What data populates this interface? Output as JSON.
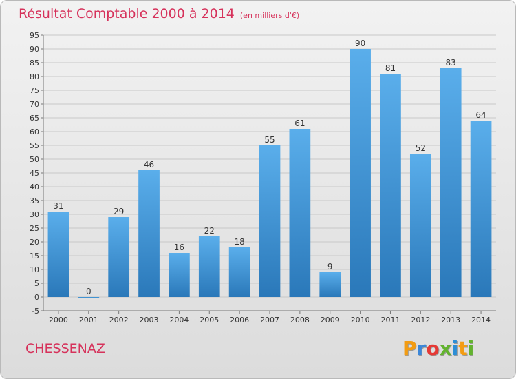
{
  "header": {
    "title": "Résultat Comptable 2000 à 2014",
    "subtitle": "(en milliers d'€)"
  },
  "footer": {
    "place": "CHESSENAZ",
    "logo_letters": [
      "P",
      "r",
      "o",
      "x",
      "i",
      "t",
      "i"
    ],
    "logo_colors": [
      "#f39c12",
      "#3b87d9",
      "#e53935",
      "#62b32e",
      "#2c8ed6",
      "#f39c12",
      "#62b32e"
    ]
  },
  "chart_data": {
    "type": "bar",
    "categories": [
      "2000",
      "2001",
      "2002",
      "2003",
      "2004",
      "2005",
      "2006",
      "2007",
      "2008",
      "2009",
      "2010",
      "2011",
      "2012",
      "2013",
      "2014"
    ],
    "values": [
      31,
      0,
      29,
      46,
      16,
      22,
      18,
      55,
      61,
      9,
      90,
      81,
      52,
      83,
      64
    ],
    "title": "Résultat Comptable 2000 à 2014",
    "ylim": [
      -5,
      95
    ],
    "yticks": [
      -5,
      0,
      5,
      10,
      15,
      20,
      25,
      30,
      35,
      40,
      45,
      50,
      55,
      60,
      65,
      70,
      75,
      80,
      85,
      90,
      95
    ],
    "grid": true,
    "bar_color": "#3b8fd6"
  }
}
